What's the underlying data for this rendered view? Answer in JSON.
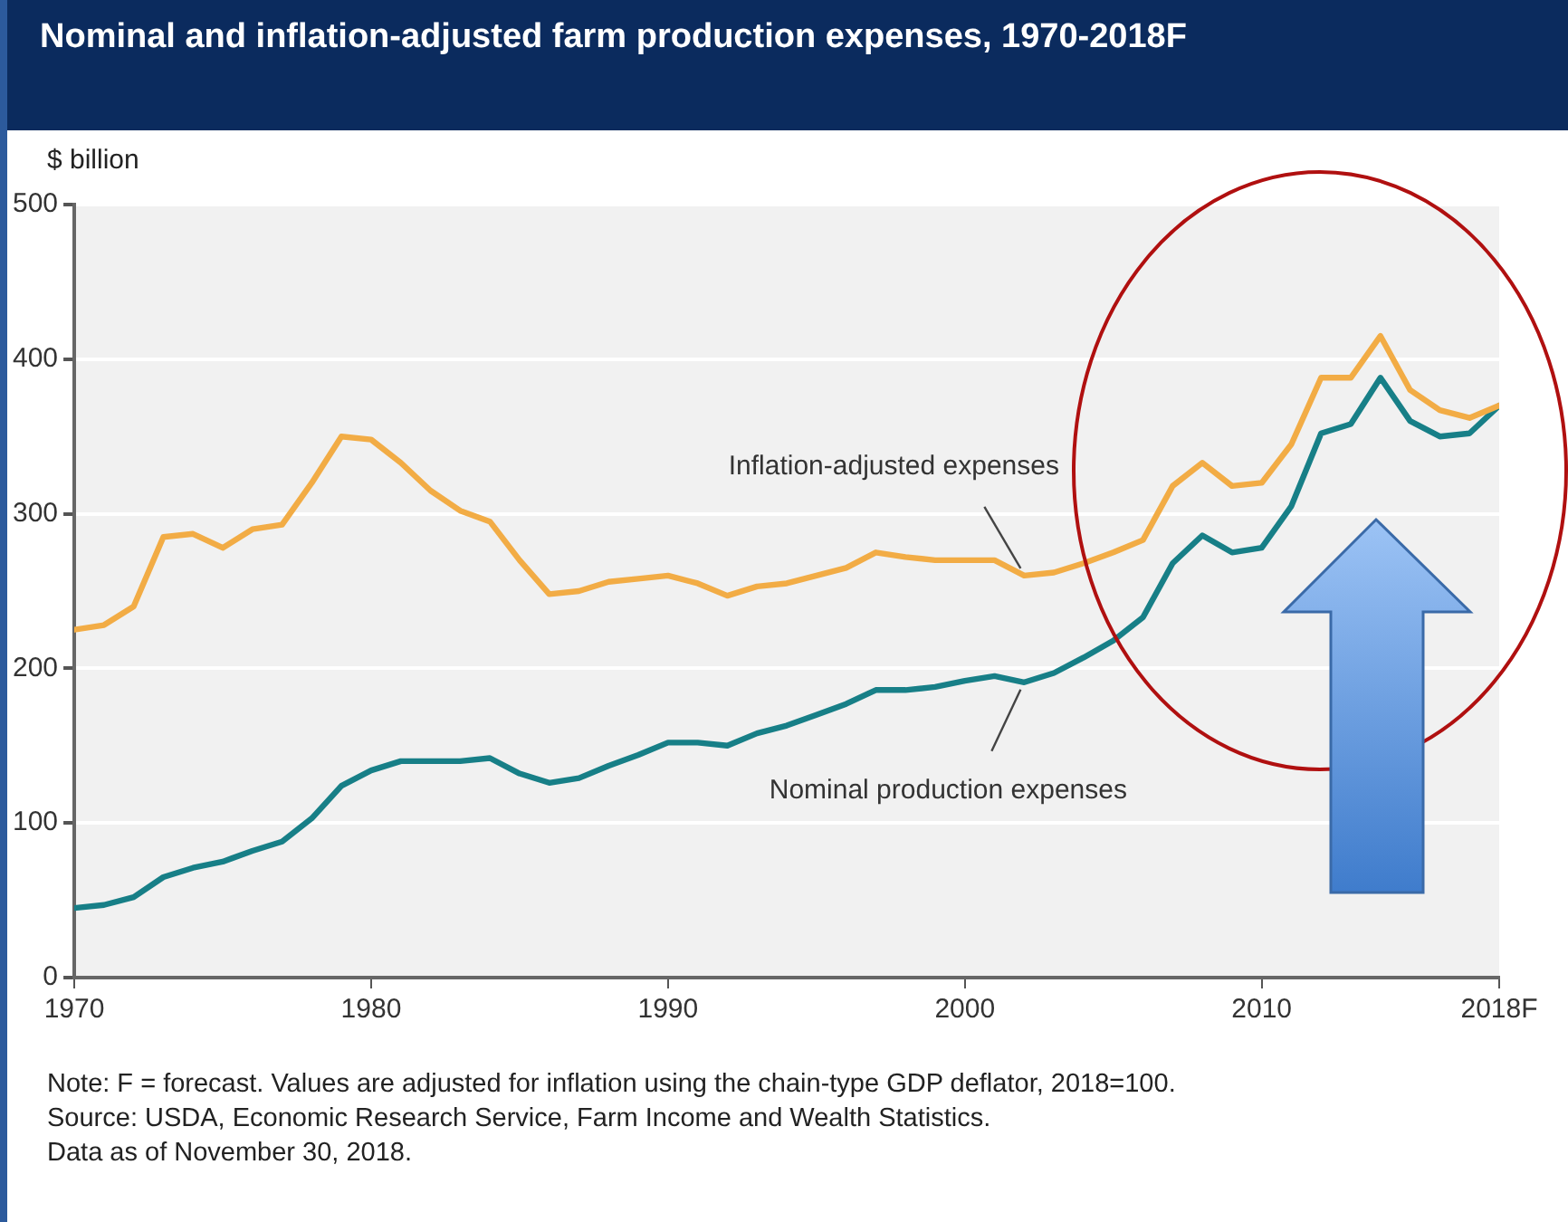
{
  "chart_data": {
    "type": "line",
    "title": "Nominal and inflation-adjusted farm production expenses, 1970-2018F",
    "ylabel": "$ billion",
    "x": [
      1970,
      1971,
      1972,
      1973,
      1974,
      1975,
      1976,
      1977,
      1978,
      1979,
      1980,
      1981,
      1982,
      1983,
      1984,
      1985,
      1986,
      1987,
      1988,
      1989,
      1990,
      1991,
      1992,
      1993,
      1994,
      1995,
      1996,
      1997,
      1998,
      1999,
      2000,
      2001,
      2002,
      2003,
      2004,
      2005,
      2006,
      2007,
      2008,
      2009,
      2010,
      2011,
      2012,
      2013,
      2014,
      2015,
      2016,
      2017,
      2018
    ],
    "series": [
      {
        "color": "#f2ac45",
        "values": [
          225,
          228,
          240,
          285,
          287,
          278,
          290,
          293,
          320,
          350,
          348,
          333,
          315,
          302,
          295,
          270,
          248,
          250,
          256,
          258,
          260,
          255,
          247,
          253,
          255,
          260,
          265,
          275,
          272,
          270,
          270,
          270,
          260,
          262,
          268,
          275,
          283,
          318,
          333,
          318,
          320,
          345,
          388,
          388,
          415,
          380,
          367,
          362,
          370
        ]
      },
      {
        "color": "#177f87",
        "values": [
          45,
          47,
          52,
          65,
          71,
          75,
          82,
          88,
          103,
          124,
          134,
          140,
          140,
          140,
          142,
          132,
          126,
          129,
          137,
          144,
          152,
          152,
          150,
          158,
          163,
          170,
          177,
          186,
          186,
          188,
          192,
          195,
          191,
          197,
          207,
          218,
          233,
          268,
          286,
          275,
          278,
          305,
          352,
          358,
          388,
          360,
          350,
          352,
          370
        ]
      }
    ],
    "xlim": [
      1970,
      2018
    ],
    "xticks": [
      1970,
      1980,
      1990,
      2000,
      2010,
      {
        "value": 2018,
        "label": "2018F"
      }
    ],
    "ylim": [
      0,
      500
    ],
    "yticks": [
      0,
      100,
      200,
      300,
      400,
      500
    ],
    "grid": "y",
    "marker": "none",
    "line_style": "solid",
    "legend": false,
    "annotations": [
      {
        "text": "Inflation-adjusted expenses",
        "x": 2002,
        "y": 260
      },
      {
        "text": "Nominal production expenses",
        "x": 2002,
        "y": 191
      },
      "Note: F = forecast. Values are adjusted for inflation using the chain-type GDP deflator, 2018=100.",
      "Source: USDA, Economic Research Service, Farm Income and Wealth Statistics.",
      "Data as of November 30, 2018."
    ]
  }
}
